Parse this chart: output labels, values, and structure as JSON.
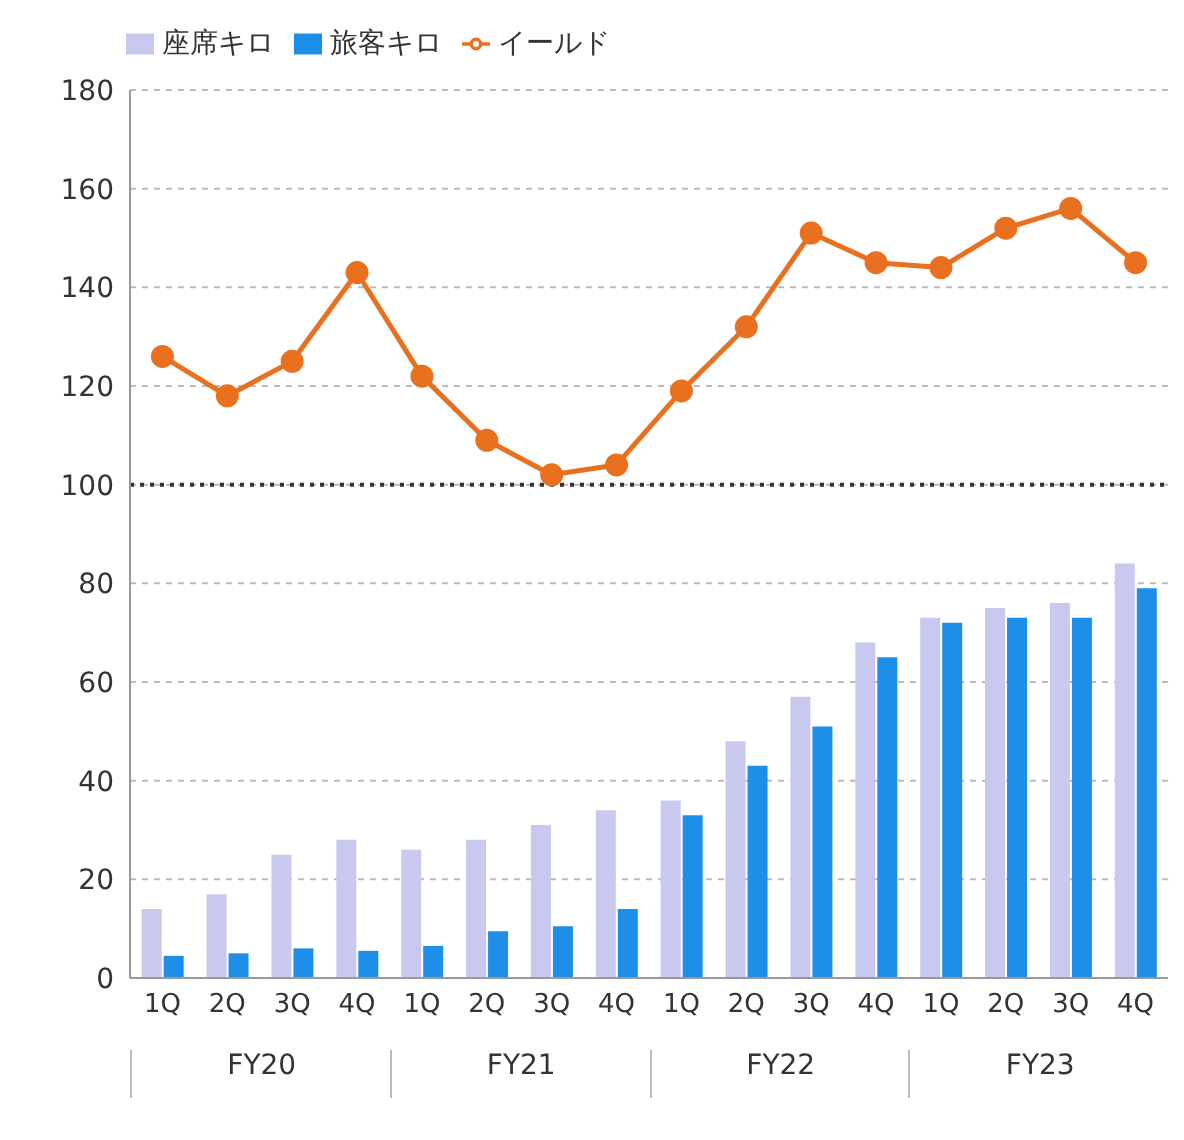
{
  "chart_data": {
    "type": "bar",
    "categories": [
      "1Q",
      "2Q",
      "3Q",
      "4Q",
      "1Q",
      "2Q",
      "3Q",
      "4Q",
      "1Q",
      "2Q",
      "3Q",
      "4Q",
      "1Q",
      "2Q",
      "3Q",
      "4Q"
    ],
    "series": [
      {
        "name": "座席キロ",
        "color": "#c8c8f0",
        "values": [
          14,
          17,
          25,
          28,
          26,
          28,
          31,
          34,
          36,
          48,
          57,
          68,
          73,
          75,
          76,
          84
        ]
      },
      {
        "name": "旅客キロ",
        "color": "#1e8fe8",
        "values": [
          4.5,
          5,
          6,
          5.5,
          6.5,
          9.5,
          10.5,
          14,
          33,
          43,
          51,
          65,
          72,
          73,
          73,
          79
        ]
      },
      {
        "name": "イールド",
        "type": "line",
        "color": "#e8701e",
        "values": [
          126,
          118,
          125,
          143,
          122,
          109,
          102,
          104,
          119,
          132,
          151,
          145,
          144,
          152,
          156,
          145
        ]
      }
    ],
    "ylim": [
      0,
      180
    ],
    "yticks": [
      0,
      20,
      40,
      60,
      80,
      100,
      120,
      140,
      160,
      180
    ],
    "grid": "y",
    "legend": "top left",
    "marker": "circle",
    "ref_lines": [
      {
        "axis": "y",
        "value": 100,
        "color": "#333333",
        "line_style": "dotted"
      }
    ],
    "annotations": [
      "FY20",
      "FY21",
      "FY22",
      "FY23"
    ]
  }
}
